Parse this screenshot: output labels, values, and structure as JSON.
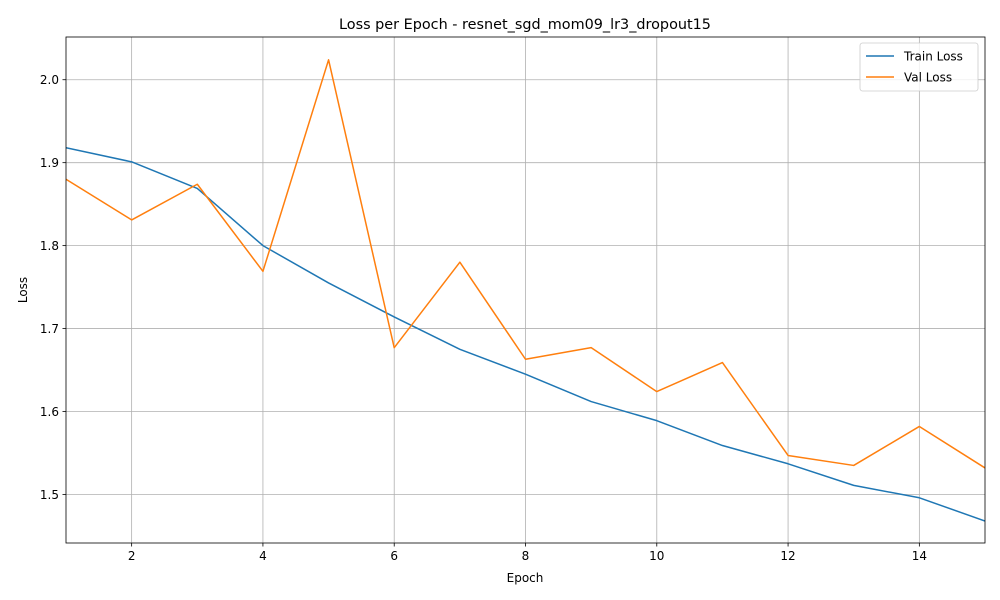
{
  "chart_data": {
    "type": "line",
    "title": "Loss per Epoch - resnet_sgd_mom09_lr3_dropout15",
    "xlabel": "Epoch",
    "ylabel": "Loss",
    "xlim": [
      1,
      15
    ],
    "ylim": [
      1.4415,
      2.0515
    ],
    "xticks": [
      2,
      4,
      6,
      8,
      10,
      12,
      14
    ],
    "yticks": [
      1.5,
      1.6,
      1.7,
      1.8,
      1.9,
      2.0
    ],
    "ytick_labels": [
      "1.5",
      "1.6",
      "1.7",
      "1.8",
      "1.9",
      "2.0"
    ],
    "grid": true,
    "legend_position": "top-right",
    "x": [
      1,
      2,
      3,
      4,
      5,
      6,
      7,
      8,
      9,
      10,
      11,
      12,
      13,
      14,
      15
    ],
    "series": [
      {
        "name": "Train Loss",
        "color": "#1f77b4",
        "values": [
          1.918,
          1.901,
          1.869,
          1.8,
          1.755,
          1.714,
          1.675,
          1.645,
          1.612,
          1.589,
          1.559,
          1.537,
          1.511,
          1.496,
          1.468
        ]
      },
      {
        "name": "Val Loss",
        "color": "#ff7f0e",
        "values": [
          1.88,
          1.831,
          1.874,
          1.769,
          2.024,
          1.677,
          1.78,
          1.663,
          1.677,
          1.624,
          1.659,
          1.547,
          1.535,
          1.582,
          1.532
        ]
      }
    ]
  }
}
